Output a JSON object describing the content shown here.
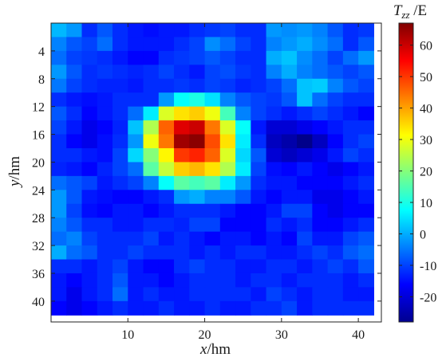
{
  "chart_data": {
    "type": "heatmap",
    "title": "",
    "xlabel": {
      "var": "x",
      "unit": "/hm"
    },
    "ylabel": {
      "var": "y",
      "unit": "/hm"
    },
    "colorbar_label": {
      "var": "T",
      "sub": "zz",
      "unit": " /E"
    },
    "xlim": [
      0,
      43
    ],
    "ylim": [
      43,
      0
    ],
    "y_axis_direction": "down",
    "x_ticks": [
      10,
      20,
      30,
      40
    ],
    "y_ticks": [
      4,
      8,
      12,
      16,
      20,
      24,
      28,
      32,
      36,
      40
    ],
    "colorbar_range": [
      -28,
      67
    ],
    "colorbar_ticks": [
      -20,
      -10,
      0,
      10,
      20,
      30,
      40,
      50,
      60
    ],
    "colormap": "jet",
    "grid": false,
    "cell_size": 2,
    "grid_columns": 21,
    "grid_rows": 21,
    "values": [
      [
        1,
        -2,
        -12,
        -8,
        -12,
        -14,
        -15,
        -14,
        -14,
        -12,
        -11,
        -10,
        -12,
        -12,
        -2,
        -3,
        -2,
        -4,
        -8,
        -12,
        -11
      ],
      [
        -4,
        -8,
        -10,
        -6,
        -12,
        -14,
        -14,
        -14,
        -12,
        -10,
        -3,
        -6,
        -10,
        -12,
        -4,
        -2,
        0,
        -3,
        -6,
        -12,
        -8
      ],
      [
        -6,
        -10,
        -11,
        -12,
        -14,
        -16,
        -16,
        -12,
        -11,
        -10,
        -8,
        -10,
        -12,
        -12,
        0,
        2,
        -3,
        -6,
        -10,
        -6,
        -2
      ],
      [
        -2,
        -8,
        -12,
        -11,
        -12,
        -13,
        -12,
        -10,
        -12,
        -14,
        -10,
        -9,
        -11,
        -12,
        -4,
        0,
        -4,
        -6,
        -8,
        -10,
        -8
      ],
      [
        -5,
        -10,
        -12,
        -13,
        -13,
        -14,
        -12,
        -12,
        -11,
        -12,
        -10,
        -11,
        -13,
        -12,
        -10,
        -6,
        2,
        3,
        -4,
        -8,
        -10
      ],
      [
        -12,
        -14,
        -15,
        -14,
        -12,
        -12,
        -12,
        -2,
        8,
        10,
        5,
        -4,
        -8,
        -10,
        -11,
        -8,
        2,
        -6,
        -10,
        -12,
        -12
      ],
      [
        -8,
        -12,
        -16,
        -14,
        -12,
        -6,
        6,
        28,
        34,
        36,
        30,
        14,
        -4,
        -10,
        -12,
        -14,
        -12,
        -10,
        -12,
        -14,
        -16
      ],
      [
        -10,
        -14,
        -18,
        -16,
        -13,
        2,
        24,
        46,
        58,
        60,
        44,
        28,
        8,
        -14,
        -20,
        -20,
        -18,
        -16,
        -14,
        -12,
        -12
      ],
      [
        -12,
        -16,
        -18,
        -15,
        -12,
        -2,
        30,
        44,
        64,
        66,
        48,
        34,
        6,
        -12,
        -22,
        -24,
        -27,
        -22,
        -16,
        -12,
        -10
      ],
      [
        -12,
        -12,
        -14,
        -15,
        -10,
        4,
        20,
        32,
        50,
        52,
        46,
        28,
        4,
        -8,
        -20,
        -22,
        -20,
        -18,
        -14,
        -10,
        -12
      ],
      [
        -13,
        -14,
        -16,
        -13,
        -10,
        -6,
        16,
        26,
        36,
        38,
        34,
        24,
        6,
        -10,
        -15,
        -16,
        -14,
        -16,
        -18,
        -16,
        -14
      ],
      [
        -6,
        -8,
        -10,
        -14,
        -12,
        -10,
        -4,
        8,
        16,
        14,
        16,
        6,
        -2,
        -12,
        -14,
        -14,
        -16,
        -16,
        -16,
        -14,
        -12
      ],
      [
        -2,
        -8,
        -14,
        -15,
        -16,
        -16,
        -14,
        -12,
        -2,
        0,
        -4,
        -4,
        -8,
        -14,
        -16,
        -14,
        -14,
        -18,
        -18,
        -16,
        -14
      ],
      [
        -2,
        -10,
        -15,
        -16,
        -14,
        -14,
        -16,
        -14,
        -12,
        -12,
        -12,
        -14,
        -16,
        -16,
        -14,
        -10,
        -10,
        -16,
        -18,
        -16,
        -16
      ],
      [
        -4,
        -8,
        -12,
        -12,
        -14,
        -14,
        -12,
        -12,
        -13,
        -10,
        -10,
        -16,
        -16,
        -16,
        -12,
        -14,
        -12,
        -16,
        -16,
        -14,
        -12
      ],
      [
        -6,
        -4,
        -10,
        -12,
        -12,
        -12,
        -10,
        -14,
        -12,
        -14,
        -16,
        -14,
        -14,
        -16,
        -14,
        -16,
        -10,
        -14,
        -14,
        -10,
        -8
      ],
      [
        0,
        -6,
        -8,
        -12,
        -12,
        -10,
        -12,
        -12,
        -12,
        -14,
        -12,
        -14,
        -12,
        -12,
        -14,
        -14,
        -12,
        -10,
        -12,
        -8,
        -6
      ],
      [
        -12,
        -12,
        -14,
        -12,
        -10,
        -14,
        -16,
        -16,
        -12,
        -10,
        -12,
        -12,
        -14,
        -14,
        -12,
        -12,
        -14,
        -12,
        -10,
        -12,
        -8
      ],
      [
        -14,
        -16,
        -14,
        -12,
        -8,
        -14,
        -14,
        -16,
        -14,
        -12,
        -12,
        -12,
        -14,
        -12,
        -12,
        -14,
        -12,
        -12,
        -12,
        -14,
        -12
      ],
      [
        -14,
        -18,
        -14,
        -12,
        -6,
        -14,
        -12,
        -14,
        -14,
        -12,
        -12,
        -12,
        -12,
        -14,
        -10,
        -12,
        -14,
        -12,
        -12,
        -14,
        -14
      ],
      [
        -16,
        -18,
        -16,
        -14,
        -12,
        -14,
        -14,
        -12,
        -14,
        -14,
        -12,
        -14,
        -14,
        -12,
        -12,
        -10,
        -14,
        -12,
        -12,
        -12,
        -12
      ]
    ]
  }
}
